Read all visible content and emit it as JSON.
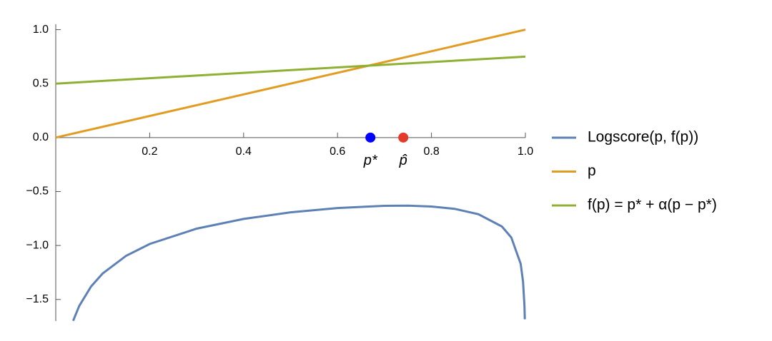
{
  "chart_data": {
    "type": "line",
    "xlim": [
      0,
      1
    ],
    "ylim": [
      -1.7,
      1.05
    ],
    "xticks": [
      0.2,
      0.4,
      0.6,
      0.8,
      {
        "value": 1,
        "label": "1.0"
      }
    ],
    "yticks": [
      {
        "value": -1.5,
        "label": "−1.5"
      },
      {
        "value": -1,
        "label": "−1.0"
      },
      {
        "value": -0.5,
        "label": "−0.5"
      },
      {
        "value": 0,
        "label": "0.0"
      },
      {
        "value": 0.5,
        "label": "0.5"
      },
      {
        "value": 1,
        "label": "1.0"
      }
    ],
    "series": [
      {
        "name": "Logscore(p, f(p))",
        "color": "#5e81b5",
        "x": [
          0.037,
          0.05,
          0.075,
          0.1,
          0.15,
          0.2,
          0.3,
          0.4,
          0.5,
          0.6,
          0.7,
          0.75,
          0.8,
          0.85,
          0.9,
          0.95,
          0.97,
          0.99,
          0.995,
          0.998,
          0.9988
        ],
        "values": [
          -1.698,
          -1.56,
          -1.381,
          -1.259,
          -1.095,
          -0.986,
          -0.844,
          -0.754,
          -0.693,
          -0.653,
          -0.632,
          -0.631,
          -0.639,
          -0.661,
          -0.71,
          -0.824,
          -0.926,
          -1.17,
          -1.335,
          -1.558,
          -1.684
        ]
      },
      {
        "name": "p",
        "color": "#e19c24",
        "x": [
          0,
          1
        ],
        "values": [
          0,
          1
        ]
      },
      {
        "name": "f(p) = p* + α(p − p*)",
        "color": "#8fb032",
        "x": [
          0,
          1
        ],
        "values": [
          0.5,
          0.75
        ]
      }
    ],
    "points": [
      {
        "label": "p*",
        "color": "#0000ff",
        "x": 0.67,
        "y": 0
      },
      {
        "label": "p̂",
        "color": "#e5392b",
        "x": 0.74,
        "y": 0
      }
    ]
  }
}
